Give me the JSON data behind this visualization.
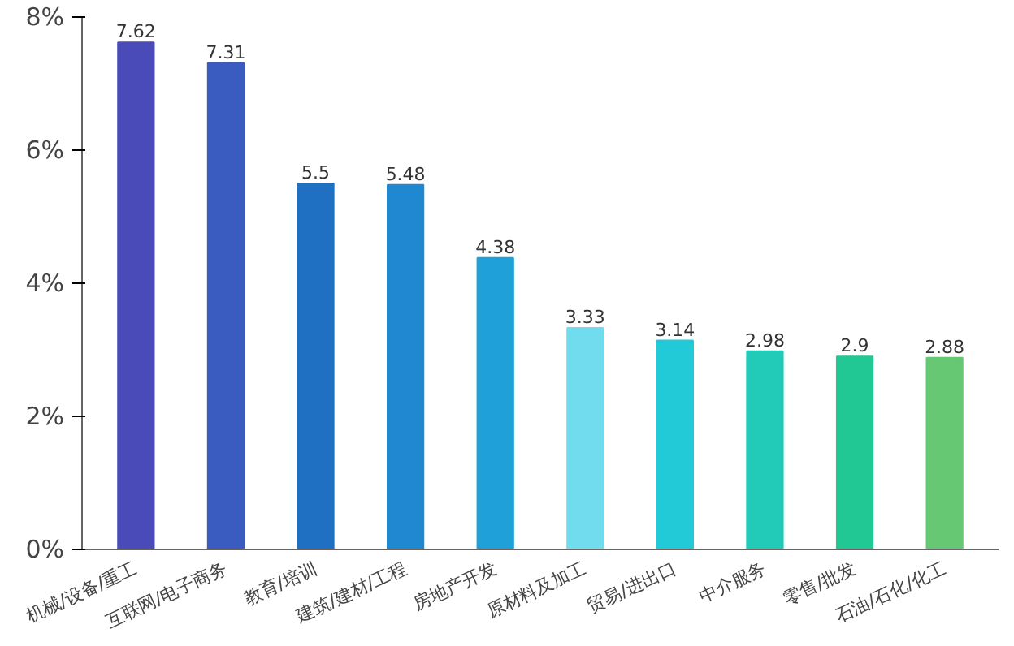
{
  "chart_data": {
    "type": "bar",
    "categories": [
      "机械/设备/重工",
      "互联网/电子商务",
      "教育/培训",
      "建筑/建材/工程",
      "房地产开发",
      "原材料及加工",
      "贸易/进出口",
      "中介服务",
      "零售/批发",
      "石油/石化/化工"
    ],
    "values": [
      7.62,
      7.31,
      5.5,
      5.48,
      4.38,
      3.33,
      3.14,
      2.98,
      2.9,
      2.88
    ],
    "colors": [
      "#4a4ab8",
      "#3a5cc0",
      "#1f6fc2",
      "#1f88d0",
      "#1fa0d8",
      "#70dcee",
      "#22cad8",
      "#22cab8",
      "#22c894",
      "#66c872"
    ],
    "ylim": [
      0,
      8
    ],
    "yticks": [
      {
        "value": 0,
        "label": "0%"
      },
      {
        "value": 2,
        "label": "2%"
      },
      {
        "value": 4,
        "label": "4%"
      },
      {
        "value": 6,
        "label": "6%"
      },
      {
        "value": 8,
        "label": "8%"
      }
    ],
    "data_labels": true,
    "grid": false
  }
}
